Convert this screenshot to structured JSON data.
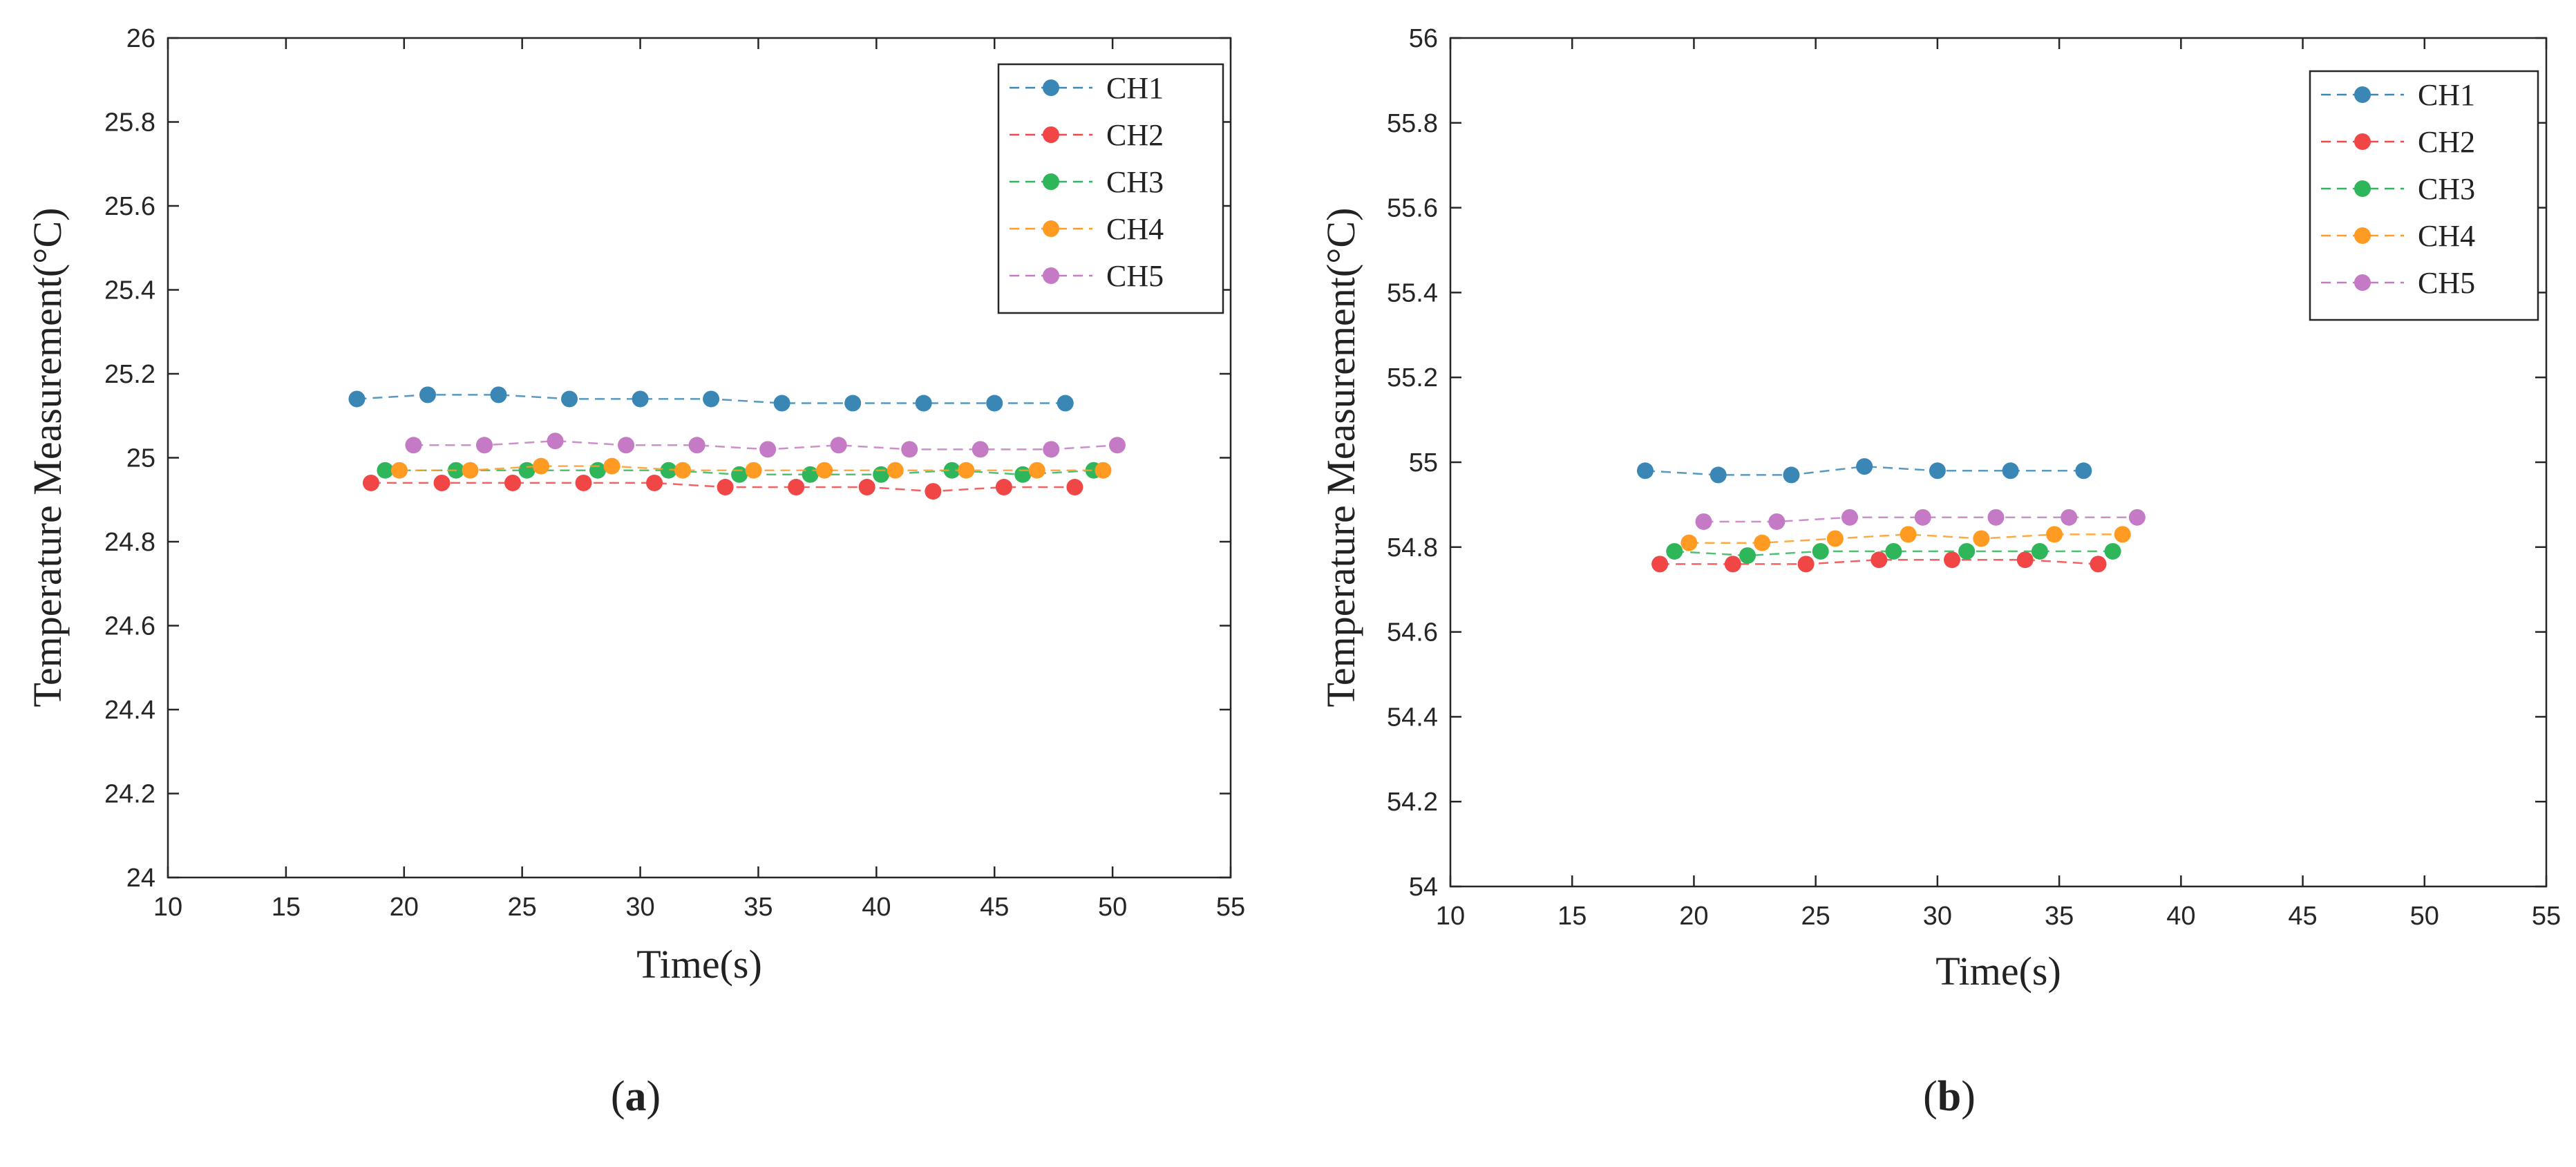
{
  "figure": {
    "captions": [
      "(a)",
      "(b)"
    ],
    "caption_letters": [
      "a",
      "b"
    ]
  },
  "colors": {
    "CH1": "#3a87b5",
    "CH2": "#f04646",
    "CH3": "#2fb65a",
    "CH4": "#ff9a22",
    "CH5": "#c47ac4"
  },
  "chart_data": [
    {
      "type": "line",
      "panel": "(a)",
      "xlabel": "Time(s)",
      "ylabel": "Temperature Measurement(°C)",
      "xlim": [
        10,
        55
      ],
      "ylim": [
        24,
        26
      ],
      "xticks": [
        10,
        15,
        20,
        25,
        30,
        35,
        40,
        45,
        50,
        55
      ],
      "yticks": [
        24,
        24.2,
        24.4,
        24.6,
        24.8,
        25,
        25.2,
        25.4,
        25.6,
        25.8,
        26
      ],
      "ytick_labels": [
        "24",
        "24.2",
        "24.4",
        "24.6",
        "24.8",
        "25",
        "25.2",
        "25.4",
        "25.6",
        "25.8",
        "26"
      ],
      "legend_position": "top-right",
      "series": [
        {
          "name": "CH1",
          "x": [
            18,
            21,
            24,
            27,
            30,
            33,
            36,
            39,
            42,
            45,
            48
          ],
          "y": [
            25.14,
            25.15,
            25.15,
            25.14,
            25.14,
            25.14,
            25.13,
            25.13,
            25.13,
            25.13,
            25.13
          ]
        },
        {
          "name": "CH2",
          "x": [
            18.6,
            21.6,
            24.6,
            27.6,
            30.6,
            33.6,
            36.6,
            39.6,
            42.4,
            45.4,
            48.4
          ],
          "y": [
            24.94,
            24.94,
            24.94,
            24.94,
            24.94,
            24.93,
            24.93,
            24.93,
            24.92,
            24.93,
            24.93
          ]
        },
        {
          "name": "CH3",
          "x": [
            19.2,
            22.2,
            25.2,
            28.2,
            31.2,
            34.2,
            37.2,
            40.2,
            43.2,
            46.2,
            49.2
          ],
          "y": [
            24.97,
            24.97,
            24.97,
            24.97,
            24.97,
            24.96,
            24.96,
            24.96,
            24.97,
            24.96,
            24.97
          ]
        },
        {
          "name": "CH4",
          "x": [
            19.8,
            22.8,
            25.8,
            28.8,
            31.8,
            34.8,
            37.8,
            40.8,
            43.8,
            46.8,
            49.6
          ],
          "y": [
            24.97,
            24.97,
            24.98,
            24.98,
            24.97,
            24.97,
            24.97,
            24.97,
            24.97,
            24.97,
            24.97
          ]
        },
        {
          "name": "CH5",
          "x": [
            20.4,
            23.4,
            26.4,
            29.4,
            32.4,
            35.4,
            38.4,
            41.4,
            44.4,
            47.4,
            50.2
          ],
          "y": [
            25.03,
            25.03,
            25.04,
            25.03,
            25.03,
            25.02,
            25.03,
            25.02,
            25.02,
            25.02,
            25.03
          ]
        }
      ]
    },
    {
      "type": "line",
      "panel": "(b)",
      "xlabel": "Time(s)",
      "ylabel": "Temperature Measurement(°C)",
      "xlim": [
        10,
        55
      ],
      "ylim": [
        54,
        56
      ],
      "xticks": [
        10,
        15,
        20,
        25,
        30,
        35,
        40,
        45,
        50,
        55
      ],
      "yticks": [
        54,
        54.2,
        54.4,
        54.6,
        54.8,
        55,
        55.2,
        55.4,
        55.6,
        55.8,
        56
      ],
      "ytick_labels": [
        "54",
        "54.2",
        "54.4",
        "54.6",
        "54.8",
        "55",
        "55.2",
        "55.4",
        "55.6",
        "55.8",
        "56"
      ],
      "legend_position": "top-right",
      "series": [
        {
          "name": "CH1",
          "x": [
            18,
            21,
            24,
            27,
            30,
            33,
            36
          ],
          "y": [
            54.98,
            54.97,
            54.97,
            54.99,
            54.98,
            54.98,
            54.98
          ]
        },
        {
          "name": "CH2",
          "x": [
            18.6,
            21.6,
            24.6,
            27.6,
            30.6,
            33.6,
            36.6
          ],
          "y": [
            54.76,
            54.76,
            54.76,
            54.77,
            54.77,
            54.77,
            54.76
          ]
        },
        {
          "name": "CH3",
          "x": [
            19.2,
            22.2,
            25.2,
            28.2,
            31.2,
            34.2,
            37.2
          ],
          "y": [
            54.79,
            54.78,
            54.79,
            54.79,
            54.79,
            54.79,
            54.79
          ]
        },
        {
          "name": "CH4",
          "x": [
            19.8,
            22.8,
            25.8,
            28.8,
            31.8,
            34.8,
            37.6
          ],
          "y": [
            54.81,
            54.81,
            54.82,
            54.83,
            54.82,
            54.83,
            54.83
          ]
        },
        {
          "name": "CH5",
          "x": [
            20.4,
            23.4,
            26.4,
            29.4,
            32.4,
            35.4,
            38.2
          ],
          "y": [
            54.86,
            54.86,
            54.87,
            54.87,
            54.87,
            54.87,
            54.87
          ]
        }
      ]
    }
  ]
}
